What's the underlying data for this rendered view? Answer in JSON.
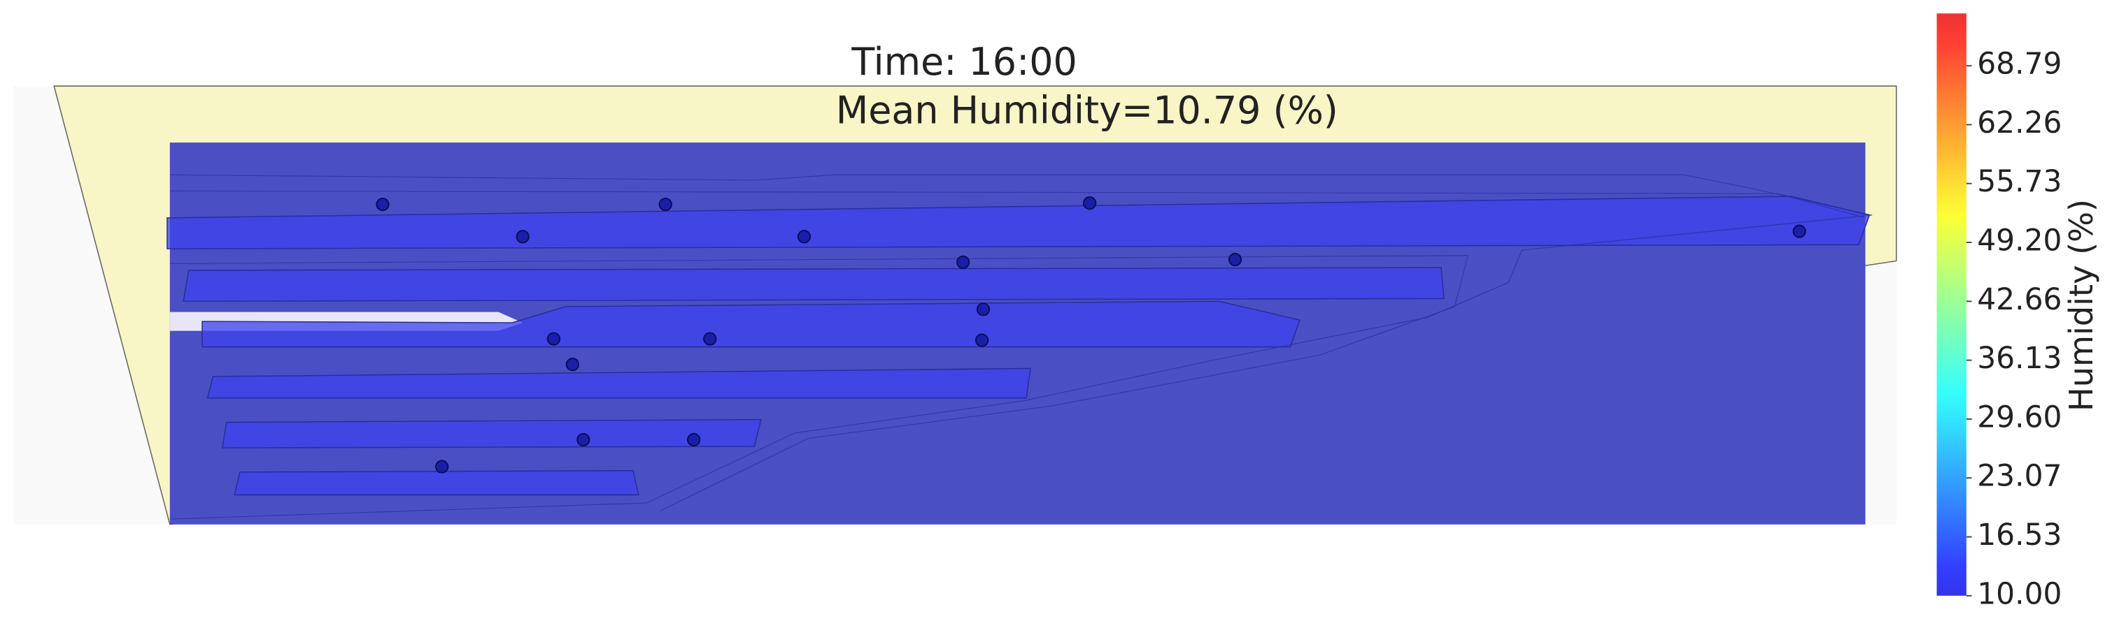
{
  "chart_data": {
    "type": "contour",
    "title": "Time: 16:00",
    "subtitle": "Mean Humidity=10.79 (%)",
    "colormap": "jet",
    "colorbar": {
      "label": "Humidity (%)",
      "lim": [
        10,
        74.6
      ],
      "ticks": [
        {
          "value": 10,
          "label": "10.00"
        },
        {
          "value": 16.53,
          "label": "16.53"
        },
        {
          "value": 23.07,
          "label": "23.07"
        },
        {
          "value": 29.6,
          "label": "29.60"
        },
        {
          "value": 36.13,
          "label": "36.13"
        },
        {
          "value": 42.66,
          "label": "42.66"
        },
        {
          "value": 49.2,
          "label": "49.20"
        },
        {
          "value": 55.73,
          "label": "55.73"
        },
        {
          "value": 62.26,
          "label": "62.26"
        },
        {
          "value": 68.79,
          "label": "68.79"
        }
      ]
    }
  }
}
